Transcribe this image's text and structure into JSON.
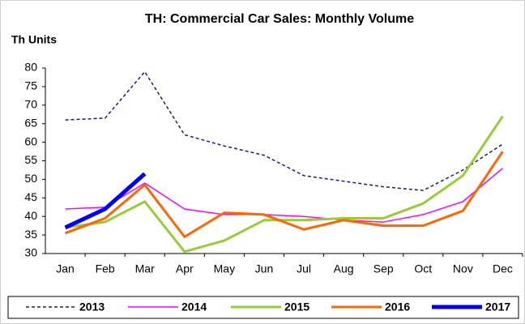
{
  "chart_data": {
    "type": "line",
    "title": "TH: Commercial Car Sales: Monthly Volume",
    "y_label": "Th Units",
    "categories": [
      "Jan",
      "Feb",
      "Mar",
      "Apr",
      "May",
      "Jun",
      "Jul",
      "Aug",
      "Sep",
      "Oct",
      "Nov",
      "Dec"
    ],
    "series": [
      {
        "name": "2013",
        "color": "#1a1a7a",
        "values": [
          66,
          66.5,
          79,
          62,
          59,
          56.5,
          51,
          49.5,
          48,
          47,
          52.5,
          59.5
        ]
      },
      {
        "name": "2014",
        "color": "#ff00ff",
        "values": [
          42,
          42.5,
          49,
          42,
          40.5,
          40.5,
          40,
          39,
          38.5,
          40.5,
          44,
          53
        ]
      },
      {
        "name": "2015",
        "color": "#99cc33",
        "values": [
          37,
          38.5,
          44,
          30.5,
          33.5,
          39,
          39,
          39.5,
          39.5,
          43.5,
          51,
          67
        ]
      },
      {
        "name": "2016",
        "color": "#ff6600",
        "values": [
          35.5,
          39.5,
          48.5,
          34.5,
          41,
          40.5,
          36.5,
          39,
          37.5,
          37.5,
          41.5,
          57.5
        ]
      },
      {
        "name": "2017",
        "color": "#0000ff",
        "values": [
          37,
          42,
          51.5,
          null,
          null,
          null,
          null,
          null,
          null,
          null,
          null,
          null
        ]
      }
    ],
    "ylim": [
      30,
      80
    ],
    "yticks": [
      30,
      35,
      40,
      45,
      50,
      55,
      60,
      65,
      70,
      75,
      80
    ],
    "grid": false,
    "legend": "bottom"
  }
}
